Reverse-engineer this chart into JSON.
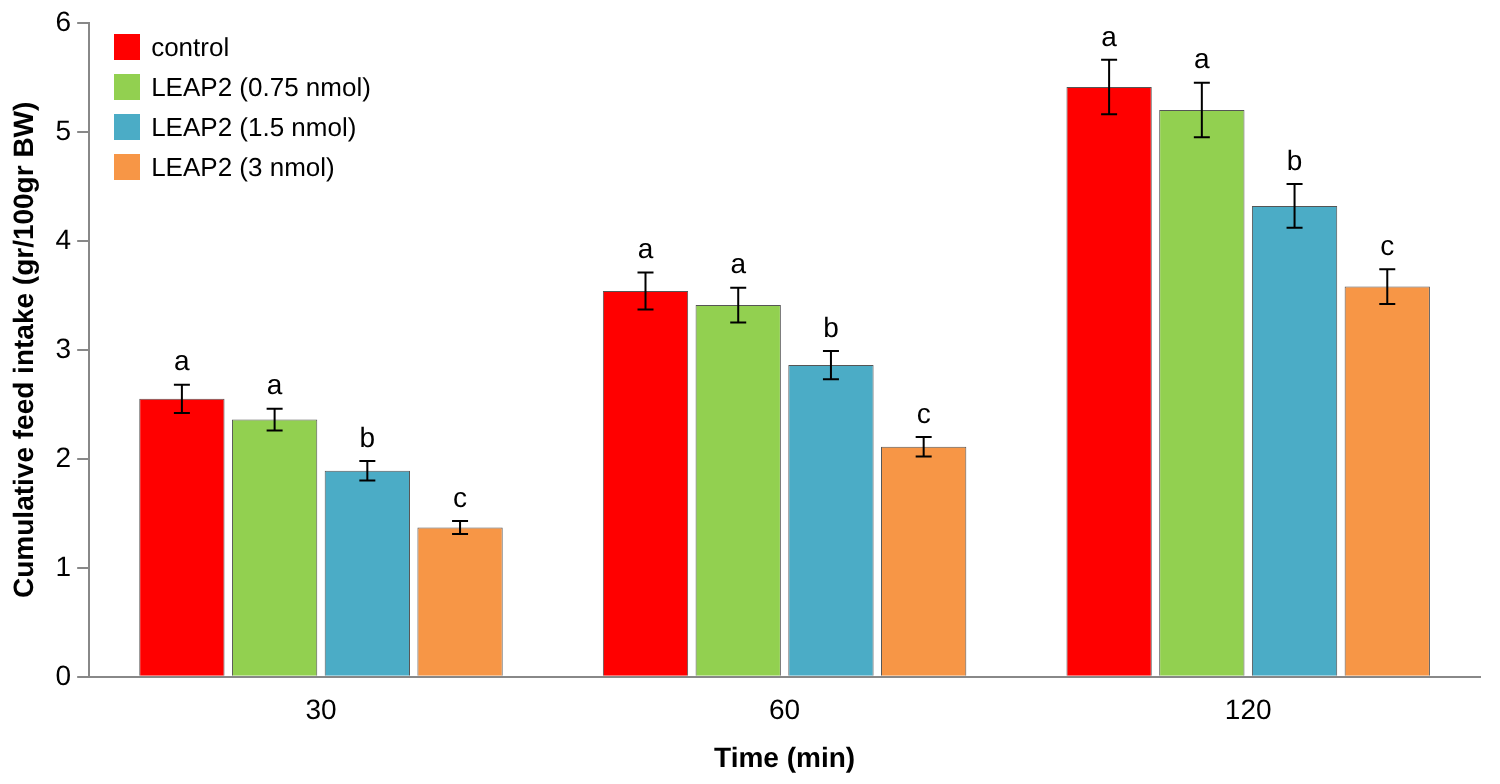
{
  "chart_data": {
    "type": "bar",
    "xlabel": "Time (min)",
    "ylabel": "Cumulative feed intake (gr/100gr BW)",
    "categories": [
      "30",
      "60",
      "120"
    ],
    "series": [
      {
        "name": "control",
        "color": "#ff0000",
        "values": [
          2.55,
          3.54,
          5.41
        ],
        "errors": [
          0.13,
          0.17,
          0.25
        ],
        "value_labels": [
          "a",
          "a",
          "a"
        ]
      },
      {
        "name": "LEAP2 (0.75 nmol)",
        "color": "#92d050",
        "values": [
          2.36,
          3.41,
          5.2
        ],
        "errors": [
          0.1,
          0.16,
          0.25
        ],
        "value_labels": [
          "a",
          "a",
          "a"
        ]
      },
      {
        "name": "LEAP2 (1.5 nmol)",
        "color": "#4bacc6",
        "values": [
          1.89,
          2.86,
          4.32
        ],
        "errors": [
          0.09,
          0.13,
          0.2
        ],
        "value_labels": [
          "b",
          "b",
          "b"
        ]
      },
      {
        "name": "LEAP2 (3 nmol)",
        "color": "#f79646",
        "values": [
          1.37,
          2.11,
          3.58
        ],
        "errors": [
          0.06,
          0.09,
          0.16
        ],
        "value_labels": [
          "c",
          "c",
          "c"
        ]
      }
    ],
    "ylim": [
      0,
      6
    ],
    "yticks": [
      0,
      1,
      2,
      3,
      4,
      5,
      6
    ],
    "grid": false,
    "legend": "top left"
  }
}
